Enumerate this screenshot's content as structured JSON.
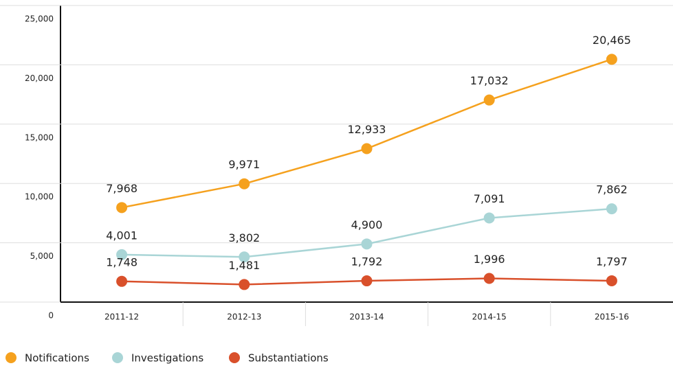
{
  "chart_data": {
    "type": "line",
    "categories": [
      "2011-12",
      "2012-13",
      "2013-14",
      "2014-15",
      "2015-16"
    ],
    "series": [
      {
        "name": "Notifications",
        "color": "#f5a11e",
        "values": [
          7968,
          9971,
          12933,
          17032,
          20465
        ],
        "value_labels": [
          "7,968",
          "9,971",
          "12,933",
          "17,032",
          "20,465"
        ]
      },
      {
        "name": "Investigations",
        "color": "#a9d5d6",
        "values": [
          4001,
          3802,
          4900,
          7091,
          7862
        ],
        "value_labels": [
          "4,001",
          "3,802",
          "4,900",
          "7,091",
          "7,862"
        ]
      },
      {
        "name": "Substantiations",
        "color": "#d9502b",
        "values": [
          1748,
          1481,
          1792,
          1996,
          1797
        ],
        "value_labels": [
          "1,748",
          "1,481",
          "1,792",
          "1,996",
          "1,797"
        ]
      }
    ],
    "ylim": [
      0,
      25000
    ],
    "yticks": [
      0,
      {
        "value": 5000,
        "label": "5,000"
      },
      {
        "value": 10000,
        "label": "10,000"
      },
      {
        "value": 15000,
        "label": "15,000"
      },
      {
        "value": 20000,
        "label": "20,000"
      },
      {
        "value": 25000,
        "label": "25,000"
      }
    ],
    "grid": true
  }
}
